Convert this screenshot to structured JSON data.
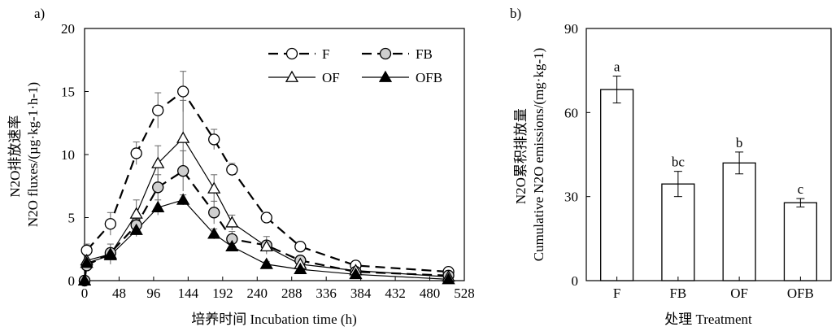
{
  "chart_data": [
    {
      "type": "line",
      "panel_label": "a)",
      "ylabel_line1": "N2O排放速率",
      "ylabel_line2": "N2O fluxes/(µg·kg-1·h-1)",
      "xlabel": "培养时间 Incubation time (h)",
      "xlim": [
        0,
        528
      ],
      "ylim": [
        0,
        20
      ],
      "xticks": [
        0,
        48,
        96,
        144,
        192,
        240,
        288,
        336,
        384,
        432,
        480,
        528
      ],
      "yticks": [
        0,
        5,
        10,
        15,
        20
      ],
      "legend_position": "top-right",
      "series": [
        {
          "name": "F",
          "line_style": "dashed",
          "marker": "circle-open",
          "points": [
            {
              "x": 0,
              "y": 0,
              "err": 0.2
            },
            {
              "x": 3,
              "y": 2.4,
              "err": 0.5
            },
            {
              "x": 36,
              "y": 4.5,
              "err": 0.9
            },
            {
              "x": 72,
              "y": 10.1,
              "err": 0.9
            },
            {
              "x": 102,
              "y": 13.5,
              "err": 1.4
            },
            {
              "x": 137,
              "y": 15.0,
              "err": 1.6
            },
            {
              "x": 180,
              "y": 11.2,
              "err": 0.8
            },
            {
              "x": 205,
              "y": 8.8,
              "err": 0.5
            },
            {
              "x": 253,
              "y": 5.0,
              "err": 0.4
            },
            {
              "x": 300,
              "y": 2.7,
              "err": 0.3
            },
            {
              "x": 377,
              "y": 1.2,
              "err": 0.2
            },
            {
              "x": 506,
              "y": 0.7,
              "err": 0.2
            }
          ]
        },
        {
          "name": "FB",
          "line_style": "dashed",
          "marker": "circle-gray",
          "points": [
            {
              "x": 0,
              "y": 0,
              "err": 0.2
            },
            {
              "x": 3,
              "y": 1.2,
              "err": 0.3
            },
            {
              "x": 36,
              "y": 2.2,
              "err": 0.3
            },
            {
              "x": 72,
              "y": 4.4,
              "err": 0.5
            },
            {
              "x": 102,
              "y": 7.4,
              "err": 1.0
            },
            {
              "x": 137,
              "y": 8.7,
              "err": 1.6
            },
            {
              "x": 180,
              "y": 5.4,
              "err": 0.9
            },
            {
              "x": 205,
              "y": 3.3,
              "err": 0.6
            },
            {
              "x": 253,
              "y": 2.8,
              "err": 0.7
            },
            {
              "x": 300,
              "y": 1.6,
              "err": 0.3
            },
            {
              "x": 377,
              "y": 0.7,
              "err": 0.2
            },
            {
              "x": 506,
              "y": 0.4,
              "err": 0.1
            }
          ]
        },
        {
          "name": "OF",
          "line_style": "solid",
          "marker": "triangle-open",
          "points": [
            {
              "x": 0,
              "y": 0,
              "err": 0.2
            },
            {
              "x": 3,
              "y": 1.6,
              "err": 0.4
            },
            {
              "x": 36,
              "y": 2.1,
              "err": 0.8
            },
            {
              "x": 72,
              "y": 5.3,
              "err": 1.1
            },
            {
              "x": 102,
              "y": 9.3,
              "err": 1.4
            },
            {
              "x": 137,
              "y": 11.3,
              "err": 3.0
            },
            {
              "x": 180,
              "y": 7.3,
              "err": 1.1
            },
            {
              "x": 205,
              "y": 4.6,
              "err": 0.6
            },
            {
              "x": 253,
              "y": 2.7,
              "err": 0.4
            },
            {
              "x": 300,
              "y": 1.3,
              "err": 0.3
            },
            {
              "x": 377,
              "y": 0.8,
              "err": 0.3
            },
            {
              "x": 506,
              "y": 0.3,
              "err": 0.1
            }
          ]
        },
        {
          "name": "OFB",
          "line_style": "solid",
          "marker": "triangle-filled",
          "points": [
            {
              "x": 0,
              "y": 0,
              "err": 0.2
            },
            {
              "x": 3,
              "y": 1.4,
              "err": 0.3
            },
            {
              "x": 36,
              "y": 2.0,
              "err": 0.3
            },
            {
              "x": 72,
              "y": 4.0,
              "err": 0.5
            },
            {
              "x": 102,
              "y": 5.8,
              "err": 0.6
            },
            {
              "x": 137,
              "y": 6.4,
              "err": 0.4
            },
            {
              "x": 180,
              "y": 3.7,
              "err": 0.4
            },
            {
              "x": 205,
              "y": 2.7,
              "err": 0.3
            },
            {
              "x": 253,
              "y": 1.3,
              "err": 0.2
            },
            {
              "x": 300,
              "y": 0.9,
              "err": 0.2
            },
            {
              "x": 377,
              "y": 0.5,
              "err": 0.1
            },
            {
              "x": 506,
              "y": 0.1,
              "err": 0.05
            }
          ]
        }
      ]
    },
    {
      "type": "bar",
      "panel_label": "b)",
      "ylabel_line1": "N2O累积排放量",
      "ylabel_line2": "Cumulative N2O emissions/(mg·kg-1)",
      "xlabel": "处理 Treatment",
      "ylim": [
        0,
        90
      ],
      "yticks": [
        0,
        30,
        60,
        90
      ],
      "categories": [
        "F",
        "FB",
        "OF",
        "OFB"
      ],
      "values": [
        68.2,
        34.5,
        42.0,
        27.8
      ],
      "errors": [
        4.8,
        4.5,
        3.9,
        1.5
      ],
      "letters": [
        "a",
        "bc",
        "b",
        "c"
      ]
    }
  ]
}
